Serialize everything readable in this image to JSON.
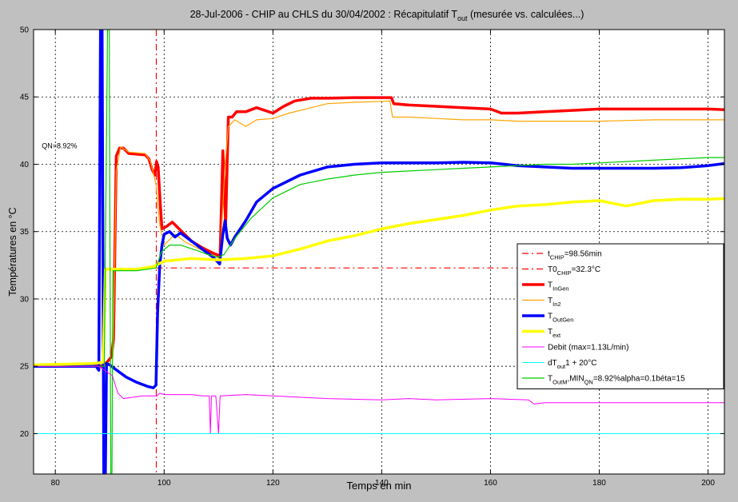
{
  "chart_data": {
    "type": "line",
    "title": {
      "prefix": "28-Jul-2006 - CHIP au CHLS du 30/04/2002 : Récapitulatif T",
      "sub": "out",
      "suffix": " (mesurée vs. calculées...)"
    },
    "xlabel": "Temps en min",
    "ylabel": "Températures en °C",
    "xlim": [
      76,
      203
    ],
    "ylim": [
      17,
      50
    ],
    "xticks": [
      80,
      100,
      120,
      140,
      160,
      180,
      200
    ],
    "xtick_labels": [
      "80",
      "100",
      "120",
      "140",
      "160",
      "180",
      "200"
    ],
    "yticks": [
      20,
      25,
      30,
      35,
      40,
      45,
      50
    ],
    "ytick_labels": [
      "20",
      "25",
      "30",
      "35",
      "40",
      "45",
      "50"
    ],
    "grid": true,
    "annotation": {
      "text": "QN=8.92%",
      "x": 77.5,
      "y": 41.2
    },
    "legend_position": "center-right",
    "legend": [
      {
        "parts": [
          [
            "t",
            "n"
          ],
          [
            "CHIP",
            "sub"
          ],
          [
            "=98.56min",
            "n"
          ]
        ]
      },
      {
        "parts": [
          [
            "T0",
            "n"
          ],
          [
            "CHIP",
            "sub"
          ],
          [
            "=32.3°C",
            "n"
          ]
        ]
      },
      {
        "parts": [
          [
            "T",
            "n"
          ],
          [
            "InGen",
            "sub"
          ]
        ]
      },
      {
        "parts": [
          [
            "T",
            "n"
          ],
          [
            "In2",
            "sub"
          ]
        ]
      },
      {
        "parts": [
          [
            "T",
            "n"
          ],
          [
            "OutGen",
            "sub"
          ]
        ]
      },
      {
        "parts": [
          [
            "T",
            "n"
          ],
          [
            "ext",
            "sub"
          ]
        ]
      },
      {
        "parts": [
          [
            "Debit (max=1.13L/min)",
            "n"
          ]
        ]
      },
      {
        "parts": [
          [
            "dT",
            "n"
          ],
          [
            "out",
            "sub"
          ],
          [
            "1 + 20°C",
            "n"
          ]
        ]
      },
      {
        "parts": [
          [
            "T",
            "n"
          ],
          [
            "OutM",
            "sub"
          ],
          [
            ",MIN",
            "n"
          ],
          [
            "QN",
            "sub"
          ],
          [
            "=8.92%alpha=0.1béta=15",
            "n"
          ]
        ]
      }
    ],
    "series": [
      {
        "color": "#ff0000",
        "width": 1.2,
        "dash": "8 4 2 4",
        "points": [
          [
            98.56,
            50
          ],
          [
            98.56,
            17
          ]
        ]
      },
      {
        "color": "#ff0000",
        "width": 1.2,
        "dash": "8 4 2 4",
        "points": [
          [
            98.56,
            32.3
          ],
          [
            203,
            32.3
          ]
        ]
      },
      {
        "color": "#ff0000",
        "width": 3.5,
        "points": [
          [
            76,
            25
          ],
          [
            87.5,
            25.1
          ],
          [
            88.5,
            25
          ],
          [
            89.5,
            25.3
          ],
          [
            90.3,
            25.7
          ],
          [
            90.7,
            27
          ],
          [
            91.2,
            40.6
          ],
          [
            91.8,
            41.2
          ],
          [
            92.5,
            41.2
          ],
          [
            93.5,
            40.8
          ],
          [
            96.5,
            40.7
          ],
          [
            97.2,
            40.4
          ],
          [
            97.8,
            39.6
          ],
          [
            98.3,
            39.2
          ],
          [
            98.6,
            40.2
          ],
          [
            98.9,
            39.8
          ],
          [
            99.3,
            37
          ],
          [
            99.6,
            35.2
          ],
          [
            100.5,
            35.4
          ],
          [
            101.5,
            35.7
          ],
          [
            103,
            35.1
          ],
          [
            105,
            34.3
          ],
          [
            107,
            33.8
          ],
          [
            109,
            33.4
          ],
          [
            110.3,
            33.2
          ],
          [
            110.8,
            41
          ],
          [
            111.3,
            35.5
          ],
          [
            111.8,
            43.5
          ],
          [
            112.5,
            43.5
          ],
          [
            113.3,
            43.9
          ],
          [
            115,
            43.9
          ],
          [
            117,
            44.2
          ],
          [
            120,
            43.8
          ],
          [
            122,
            44.3
          ],
          [
            124,
            44.7
          ],
          [
            127,
            44.9
          ],
          [
            130,
            44.9
          ],
          [
            135,
            44.95
          ],
          [
            141.8,
            44.95
          ],
          [
            142.2,
            44.5
          ],
          [
            145,
            44.4
          ],
          [
            150,
            44.3
          ],
          [
            155,
            44.2
          ],
          [
            160,
            44.1
          ],
          [
            162,
            43.8
          ],
          [
            165,
            43.8
          ],
          [
            170,
            43.9
          ],
          [
            175,
            44
          ],
          [
            180,
            44.1
          ],
          [
            190,
            44.1
          ],
          [
            200,
            44.1
          ],
          [
            203,
            44.05
          ]
        ]
      },
      {
        "color": "#ffa500",
        "width": 1.2,
        "points": [
          [
            90.6,
            25.7
          ],
          [
            91.2,
            39.5
          ],
          [
            92,
            41.3
          ],
          [
            93.5,
            40.9
          ],
          [
            96.5,
            40.8
          ],
          [
            97.5,
            40.2
          ],
          [
            98.5,
            38.5
          ],
          [
            99.2,
            35.5
          ],
          [
            100,
            34
          ],
          [
            102,
            34.8
          ],
          [
            104,
            34.2
          ],
          [
            106,
            33.8
          ],
          [
            108,
            33.4
          ],
          [
            110.3,
            33
          ],
          [
            111.2,
            40
          ],
          [
            111.8,
            42.8
          ],
          [
            113,
            43.3
          ],
          [
            115,
            42.8
          ],
          [
            117,
            43.3
          ],
          [
            120,
            43.4
          ],
          [
            123,
            43.8
          ],
          [
            126,
            44.1
          ],
          [
            130,
            44.5
          ],
          [
            135,
            44.6
          ],
          [
            141.5,
            44.7
          ],
          [
            142,
            43.5
          ],
          [
            145,
            43.5
          ],
          [
            150,
            43.4
          ],
          [
            155,
            43.3
          ],
          [
            160,
            43.3
          ],
          [
            165,
            43.2
          ],
          [
            170,
            43.2
          ],
          [
            180,
            43.2
          ],
          [
            190,
            43.3
          ],
          [
            203,
            43.3
          ]
        ]
      },
      {
        "color": "#0000ff",
        "width": 3.5,
        "points": [
          [
            76,
            25
          ],
          [
            87.5,
            25
          ],
          [
            88,
            24.7
          ],
          [
            88.3,
            50
          ],
          [
            88.6,
            50
          ],
          [
            88.9,
            17
          ],
          [
            89.2,
            17
          ],
          [
            89.4,
            25.2
          ],
          [
            90,
            25.1
          ],
          [
            91,
            24.8
          ],
          [
            93,
            24.2
          ],
          [
            95,
            23.8
          ],
          [
            97,
            23.5
          ],
          [
            98,
            23.4
          ],
          [
            98.5,
            23.6
          ],
          [
            98.8,
            29
          ],
          [
            99.2,
            32.5
          ],
          [
            99.6,
            34
          ],
          [
            100,
            34.8
          ],
          [
            101,
            35
          ],
          [
            102,
            34.6
          ],
          [
            103,
            34.9
          ],
          [
            105,
            34.3
          ],
          [
            107,
            33.7
          ],
          [
            109,
            33.1
          ],
          [
            110.2,
            32.6
          ],
          [
            110.8,
            34.8
          ],
          [
            111.2,
            35.8
          ],
          [
            111.6,
            34.5
          ],
          [
            112.2,
            34
          ],
          [
            113,
            34.6
          ],
          [
            115,
            35.8
          ],
          [
            117,
            37.2
          ],
          [
            120,
            38.2
          ],
          [
            125,
            39.2
          ],
          [
            130,
            39.8
          ],
          [
            135,
            40
          ],
          [
            140,
            40.1
          ],
          [
            145,
            40.1
          ],
          [
            150,
            40.1
          ],
          [
            155,
            40.15
          ],
          [
            160,
            40.1
          ],
          [
            165,
            39.9
          ],
          [
            170,
            39.8
          ],
          [
            175,
            39.7
          ],
          [
            180,
            39.7
          ],
          [
            185,
            39.7
          ],
          [
            190,
            39.7
          ],
          [
            195,
            39.75
          ],
          [
            200,
            39.9
          ],
          [
            203,
            40.05
          ]
        ]
      },
      {
        "color": "#ffff00",
        "width": 3.5,
        "points": [
          [
            76,
            25.1
          ],
          [
            87,
            25.2
          ],
          [
            88.8,
            25.3
          ],
          [
            89.2,
            32.2
          ],
          [
            92,
            32.2
          ],
          [
            95,
            32.2
          ],
          [
            98,
            32.4
          ],
          [
            100,
            32.8
          ],
          [
            105,
            33
          ],
          [
            110,
            32.9
          ],
          [
            115,
            33
          ],
          [
            120,
            33.2
          ],
          [
            125,
            33.7
          ],
          [
            130,
            34.3
          ],
          [
            135,
            34.7
          ],
          [
            140,
            35.2
          ],
          [
            145,
            35.6
          ],
          [
            150,
            35.9
          ],
          [
            155,
            36.2
          ],
          [
            160,
            36.6
          ],
          [
            165,
            36.9
          ],
          [
            170,
            37
          ],
          [
            175,
            37.2
          ],
          [
            180,
            37.3
          ],
          [
            185,
            36.9
          ],
          [
            190,
            37.3
          ],
          [
            195,
            37.4
          ],
          [
            200,
            37.4
          ],
          [
            203,
            37.45
          ]
        ]
      },
      {
        "color": "#00cc00",
        "width": 1.2,
        "points": [
          [
            76,
            25
          ],
          [
            89,
            25
          ],
          [
            89.6,
            50
          ],
          [
            89.9,
            50
          ],
          [
            90.2,
            17
          ],
          [
            90.4,
            17
          ],
          [
            90.6,
            32.1
          ],
          [
            95,
            32.1
          ],
          [
            98.5,
            32.3
          ],
          [
            99.5,
            33.5
          ],
          [
            101,
            34
          ],
          [
            103,
            34
          ],
          [
            106,
            33.6
          ],
          [
            108,
            33.3
          ],
          [
            110,
            33.1
          ],
          [
            111,
            33.3
          ],
          [
            113,
            34.5
          ],
          [
            116,
            36
          ],
          [
            120,
            37.5
          ],
          [
            125,
            38.5
          ],
          [
            130,
            38.9
          ],
          [
            135,
            39.2
          ],
          [
            140,
            39.4
          ],
          [
            145,
            39.5
          ],
          [
            150,
            39.6
          ],
          [
            155,
            39.7
          ],
          [
            160,
            39.8
          ],
          [
            165,
            39.9
          ],
          [
            170,
            40
          ],
          [
            175,
            40
          ],
          [
            180,
            40.1
          ],
          [
            185,
            40.2
          ],
          [
            190,
            40.3
          ],
          [
            195,
            40.4
          ],
          [
            200,
            40.5
          ],
          [
            203,
            40.5
          ]
        ]
      },
      {
        "color": "#ff00ff",
        "width": 1,
        "points": [
          [
            76,
            25
          ],
          [
            88,
            25
          ],
          [
            90.5,
            24.3
          ],
          [
            91.5,
            23
          ],
          [
            92.5,
            22.6
          ],
          [
            96,
            22.8
          ],
          [
            98.7,
            22.8
          ],
          [
            99.2,
            23
          ],
          [
            100,
            22.9
          ],
          [
            105,
            22.9
          ],
          [
            107,
            22.8
          ],
          [
            108.3,
            22.8
          ],
          [
            108.5,
            20
          ],
          [
            108.7,
            22.8
          ],
          [
            109.5,
            22.8
          ],
          [
            110,
            20
          ],
          [
            110.3,
            22.8
          ],
          [
            115,
            22.9
          ],
          [
            120,
            22.8
          ],
          [
            130,
            22.6
          ],
          [
            140,
            22.5
          ],
          [
            145,
            22.6
          ],
          [
            150,
            22.5
          ],
          [
            160,
            22.6
          ],
          [
            167,
            22.5
          ],
          [
            168,
            22.2
          ],
          [
            170,
            22.3
          ],
          [
            180,
            22.3
          ],
          [
            190,
            22.3
          ],
          [
            203,
            22.3
          ]
        ]
      },
      {
        "color": "#00ffff",
        "width": 1,
        "points": [
          [
            76,
            20
          ],
          [
            203,
            20
          ]
        ]
      }
    ]
  }
}
